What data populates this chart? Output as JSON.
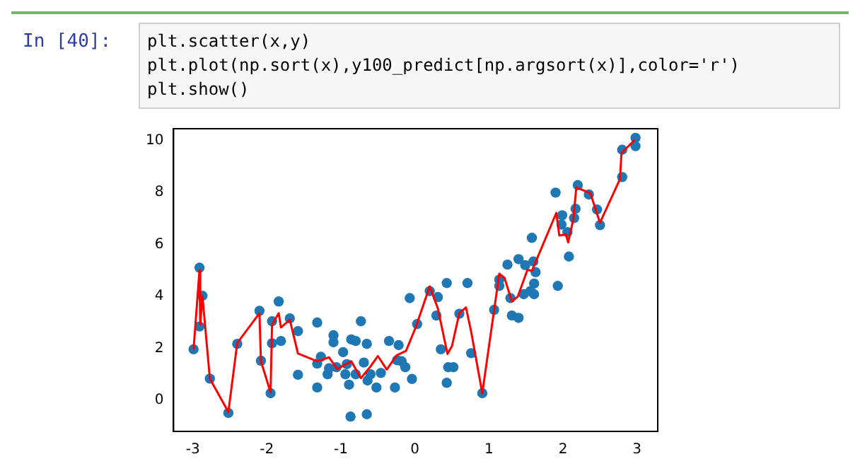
{
  "chart_data": {
    "type": "scatter",
    "annotations": [
      "In  [40]:",
      "plt.scatter(x,y)",
      "plt.plot(np.sort(x),y100_predict[np.argsort(x)],color='r')",
      "plt.show()"
    ],
    "xlim": [
      -3.26,
      3.28
    ],
    "ylim": [
      -1.2,
      10.45
    ],
    "xticks": [
      -3,
      -2,
      -1,
      0,
      1,
      2,
      3
    ],
    "yticks": [
      0,
      2,
      4,
      6,
      8,
      10
    ],
    "grid": false,
    "legend": false,
    "series": [
      {
        "color": "#1f77b4",
        "marker": "circle",
        "x": [
          -2.99,
          -2.91,
          -2.91,
          -2.87,
          -2.77,
          -2.52,
          -2.4,
          -2.1,
          -2.08,
          -1.95,
          -1.93,
          -1.93,
          -1.84,
          -1.81,
          -1.69,
          -1.58,
          -1.58,
          -1.32,
          -1.32,
          -1.32,
          -1.27,
          -1.18,
          -1.16,
          -1.1,
          -1.1,
          -1.06,
          -0.97,
          -0.94,
          -0.92,
          -0.89,
          -0.87,
          -0.86,
          -0.8,
          -0.8,
          -0.73,
          -0.69,
          -0.65,
          -0.65,
          -0.64,
          -0.6,
          -0.52,
          -0.46,
          -0.35,
          -0.27,
          -0.24,
          -0.22,
          -0.18,
          -0.13,
          -0.07,
          -0.04,
          0.03,
          0.2,
          0.29,
          0.31,
          0.35,
          0.43,
          0.43,
          0.45,
          0.52,
          0.6,
          0.71,
          0.76,
          0.91,
          1.07,
          1.14,
          1.14,
          1.25,
          1.29,
          1.31,
          1.4,
          1.4,
          1.47,
          1.49,
          1.56,
          1.58,
          1.6,
          1.61,
          1.61,
          1.63,
          1.9,
          1.93,
          1.98,
          1.99,
          2.06,
          2.08,
          2.15,
          2.17,
          2.2,
          2.35,
          2.46,
          2.5,
          2.8,
          2.8,
          2.98,
          2.98
        ],
        "values": [
          1.96,
          5.1,
          2.84,
          4.02,
          0.83,
          -0.49,
          2.17,
          3.44,
          1.52,
          0.27,
          3.04,
          2.19,
          3.8,
          2.28,
          3.15,
          2.66,
          0.98,
          2.99,
          0.49,
          1.41,
          1.67,
          1.0,
          1.23,
          2.5,
          2.23,
          1.27,
          1.85,
          1.0,
          1.39,
          0.6,
          -0.63,
          2.34,
          1.0,
          2.28,
          3.04,
          1.45,
          2.17,
          -0.54,
          0.76,
          1.0,
          0.49,
          1.05,
          2.28,
          0.49,
          1.54,
          2.12,
          1.5,
          1.27,
          3.93,
          0.82,
          2.93,
          4.2,
          3.26,
          3.97,
          1.96,
          4.51,
          0.67,
          1.27,
          1.27,
          3.33,
          4.51,
          1.81,
          0.27,
          3.48,
          4.64,
          4.4,
          5.22,
          3.93,
          3.26,
          3.17,
          5.43,
          4.08,
          5.2,
          4.2,
          6.25,
          5.34,
          4.49,
          4.08,
          4.93,
          7.99,
          4.4,
          6.76,
          7.12,
          6.47,
          5.53,
          7.01,
          7.37,
          8.28,
          7.92,
          7.34,
          6.74,
          8.59,
          9.64,
          10.1,
          9.78
        ]
      },
      {
        "type": "line",
        "color": "#ff0000",
        "marker": "none",
        "line_style": "solid",
        "x": [
          -2.99,
          -2.91,
          -2.9,
          -2.87,
          -2.77,
          -2.52,
          -2.4,
          -2.1,
          -2.08,
          -1.95,
          -1.93,
          -1.84,
          -1.81,
          -1.69,
          -1.58,
          -1.32,
          -1.16,
          -1.05,
          -0.86,
          -0.73,
          -0.6,
          -0.5,
          -0.38,
          -0.25,
          -0.12,
          0.01,
          0.2,
          0.31,
          0.44,
          0.5,
          0.6,
          0.69,
          0.76,
          0.91,
          1.14,
          1.21,
          1.31,
          1.39,
          1.52,
          1.58,
          1.91,
          1.95,
          2.04,
          2.07,
          2.14,
          2.18,
          2.37,
          2.5,
          2.77,
          2.79,
          2.97
        ],
        "values": [
          1.96,
          5.0,
          2.9,
          4.0,
          0.83,
          -0.45,
          2.2,
          3.35,
          1.5,
          0.3,
          2.9,
          3.35,
          2.8,
          3.1,
          1.8,
          1.5,
          1.65,
          1.2,
          1.5,
          0.85,
          1.3,
          1.7,
          1.18,
          1.72,
          1.9,
          2.8,
          4.38,
          3.53,
          1.78,
          2.08,
          3.35,
          3.57,
          2.63,
          0.27,
          4.87,
          4.71,
          3.8,
          3.99,
          5.02,
          4.98,
          7.21,
          6.34,
          6.38,
          6.07,
          6.97,
          8.19,
          7.97,
          6.83,
          8.51,
          9.51,
          10.02
        ]
      }
    ]
  }
}
